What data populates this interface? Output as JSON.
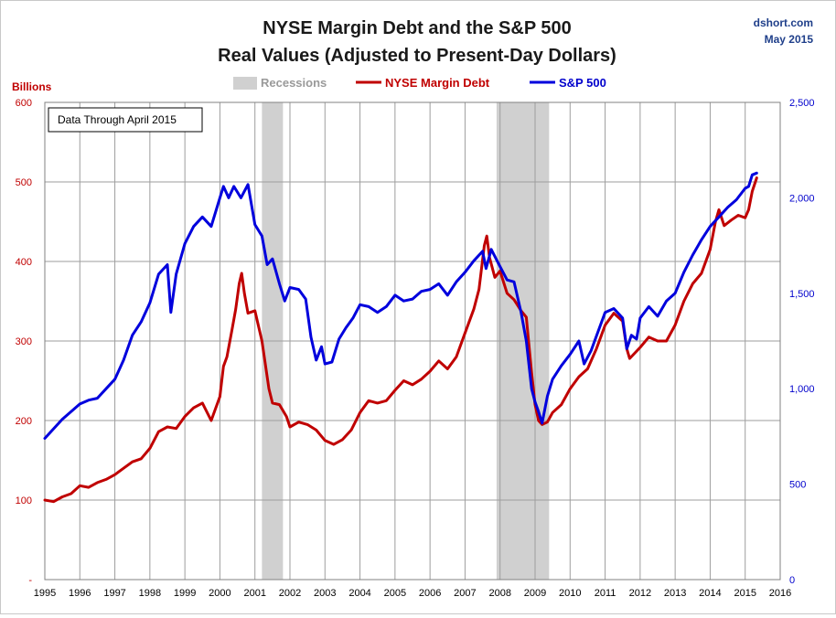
{
  "chart_data": {
    "type": "line",
    "title": "NYSE Margin Debt and the S&P 500",
    "subtitle": "Real Values (Adjusted to Present-Day Dollars)",
    "source": "dshort.com",
    "date": "May 2015",
    "annotation": "Data Through April 2015",
    "ylabel_left": "Billions",
    "x_ticks": [
      "1995",
      "1996",
      "1997",
      "1998",
      "1999",
      "2000",
      "2001",
      "2002",
      "2003",
      "2004",
      "2005",
      "2006",
      "2007",
      "2008",
      "2009",
      "2010",
      "2011",
      "2012",
      "2013",
      "2014",
      "2015",
      "2016"
    ],
    "y_left_ticks": [
      "600",
      "500",
      "400",
      "300",
      "200",
      "100",
      "-"
    ],
    "y_right_ticks": [
      "2,500",
      "2,000",
      "1,500",
      "1,000",
      "500",
      "0"
    ],
    "xlim": [
      1995,
      2016
    ],
    "ylim_left": [
      0,
      600
    ],
    "ylim_right": [
      0,
      2500
    ],
    "grid": true,
    "legend_position": "top-center",
    "recessions": [
      {
        "start": 2001.2,
        "end": 2001.8
      },
      {
        "start": 2007.9,
        "end": 2009.4
      }
    ],
    "recession_label": "Recessions",
    "recession_color": "#d0d0d0",
    "series": [
      {
        "name": "NYSE Margin Debt",
        "axis": "left",
        "color": "#c00000",
        "points": [
          [
            1995.0,
            100
          ],
          [
            1995.25,
            98
          ],
          [
            1995.5,
            104
          ],
          [
            1995.75,
            108
          ],
          [
            1996.0,
            118
          ],
          [
            1996.25,
            116
          ],
          [
            1996.5,
            122
          ],
          [
            1996.75,
            126
          ],
          [
            1997.0,
            132
          ],
          [
            1997.25,
            140
          ],
          [
            1997.5,
            148
          ],
          [
            1997.75,
            152
          ],
          [
            1998.0,
            165
          ],
          [
            1998.25,
            186
          ],
          [
            1998.5,
            192
          ],
          [
            1998.75,
            190
          ],
          [
            1999.0,
            205
          ],
          [
            1999.25,
            216
          ],
          [
            1999.5,
            222
          ],
          [
            1999.75,
            200
          ],
          [
            2000.0,
            230
          ],
          [
            2000.1,
            268
          ],
          [
            2000.2,
            280
          ],
          [
            2000.35,
            315
          ],
          [
            2000.45,
            340
          ],
          [
            2000.55,
            372
          ],
          [
            2000.62,
            385
          ],
          [
            2000.7,
            360
          ],
          [
            2000.8,
            335
          ],
          [
            2001.0,
            338
          ],
          [
            2001.2,
            300
          ],
          [
            2001.4,
            240
          ],
          [
            2001.5,
            222
          ],
          [
            2001.7,
            220
          ],
          [
            2001.9,
            205
          ],
          [
            2002.0,
            192
          ],
          [
            2002.25,
            198
          ],
          [
            2002.5,
            195
          ],
          [
            2002.75,
            188
          ],
          [
            2003.0,
            175
          ],
          [
            2003.25,
            170
          ],
          [
            2003.5,
            176
          ],
          [
            2003.75,
            188
          ],
          [
            2004.0,
            210
          ],
          [
            2004.25,
            225
          ],
          [
            2004.5,
            222
          ],
          [
            2004.75,
            225
          ],
          [
            2005.0,
            238
          ],
          [
            2005.25,
            250
          ],
          [
            2005.5,
            245
          ],
          [
            2005.75,
            252
          ],
          [
            2006.0,
            262
          ],
          [
            2006.25,
            275
          ],
          [
            2006.5,
            265
          ],
          [
            2006.75,
            280
          ],
          [
            2007.0,
            310
          ],
          [
            2007.25,
            340
          ],
          [
            2007.4,
            365
          ],
          [
            2007.55,
            420
          ],
          [
            2007.62,
            432
          ],
          [
            2007.7,
            405
          ],
          [
            2007.85,
            380
          ],
          [
            2008.0,
            388
          ],
          [
            2008.2,
            360
          ],
          [
            2008.4,
            352
          ],
          [
            2008.6,
            338
          ],
          [
            2008.75,
            330
          ],
          [
            2008.9,
            260
          ],
          [
            2009.0,
            220
          ],
          [
            2009.1,
            200
          ],
          [
            2009.2,
            195
          ],
          [
            2009.35,
            198
          ],
          [
            2009.5,
            210
          ],
          [
            2009.75,
            220
          ],
          [
            2010.0,
            240
          ],
          [
            2010.25,
            255
          ],
          [
            2010.5,
            265
          ],
          [
            2010.75,
            290
          ],
          [
            2011.0,
            320
          ],
          [
            2011.25,
            335
          ],
          [
            2011.5,
            325
          ],
          [
            2011.62,
            290
          ],
          [
            2011.7,
            278
          ],
          [
            2011.85,
            285
          ],
          [
            2012.0,
            292
          ],
          [
            2012.25,
            305
          ],
          [
            2012.5,
            300
          ],
          [
            2012.75,
            300
          ],
          [
            2013.0,
            320
          ],
          [
            2013.25,
            350
          ],
          [
            2013.5,
            372
          ],
          [
            2013.75,
            385
          ],
          [
            2014.0,
            415
          ],
          [
            2014.15,
            450
          ],
          [
            2014.25,
            465
          ],
          [
            2014.4,
            445
          ],
          [
            2014.6,
            452
          ],
          [
            2014.8,
            458
          ],
          [
            2015.0,
            455
          ],
          [
            2015.1,
            465
          ],
          [
            2015.2,
            488
          ],
          [
            2015.33,
            505
          ]
        ]
      },
      {
        "name": "S&P 500",
        "axis": "right",
        "color": "#0000dd",
        "points": [
          [
            1995.0,
            740
          ],
          [
            1995.25,
            790
          ],
          [
            1995.5,
            840
          ],
          [
            1995.75,
            880
          ],
          [
            1996.0,
            920
          ],
          [
            1996.25,
            940
          ],
          [
            1996.5,
            950
          ],
          [
            1996.75,
            1000
          ],
          [
            1997.0,
            1050
          ],
          [
            1997.25,
            1150
          ],
          [
            1997.5,
            1280
          ],
          [
            1997.75,
            1350
          ],
          [
            1998.0,
            1450
          ],
          [
            1998.25,
            1600
          ],
          [
            1998.5,
            1650
          ],
          [
            1998.6,
            1400
          ],
          [
            1998.75,
            1600
          ],
          [
            1999.0,
            1760
          ],
          [
            1999.25,
            1850
          ],
          [
            1999.5,
            1900
          ],
          [
            1999.75,
            1850
          ],
          [
            2000.0,
            2000
          ],
          [
            2000.1,
            2060
          ],
          [
            2000.25,
            2000
          ],
          [
            2000.4,
            2060
          ],
          [
            2000.6,
            2000
          ],
          [
            2000.8,
            2070
          ],
          [
            2001.0,
            1860
          ],
          [
            2001.2,
            1800
          ],
          [
            2001.35,
            1650
          ],
          [
            2001.5,
            1680
          ],
          [
            2001.7,
            1550
          ],
          [
            2001.85,
            1460
          ],
          [
            2002.0,
            1530
          ],
          [
            2002.25,
            1520
          ],
          [
            2002.45,
            1470
          ],
          [
            2002.6,
            1270
          ],
          [
            2002.75,
            1150
          ],
          [
            2002.9,
            1220
          ],
          [
            2003.0,
            1130
          ],
          [
            2003.2,
            1140
          ],
          [
            2003.4,
            1260
          ],
          [
            2003.6,
            1320
          ],
          [
            2003.8,
            1370
          ],
          [
            2004.0,
            1440
          ],
          [
            2004.25,
            1430
          ],
          [
            2004.5,
            1400
          ],
          [
            2004.75,
            1430
          ],
          [
            2005.0,
            1490
          ],
          [
            2005.25,
            1460
          ],
          [
            2005.5,
            1470
          ],
          [
            2005.75,
            1510
          ],
          [
            2006.0,
            1520
          ],
          [
            2006.25,
            1550
          ],
          [
            2006.5,
            1490
          ],
          [
            2006.75,
            1560
          ],
          [
            2007.0,
            1610
          ],
          [
            2007.25,
            1670
          ],
          [
            2007.5,
            1720
          ],
          [
            2007.6,
            1630
          ],
          [
            2007.75,
            1730
          ],
          [
            2008.0,
            1640
          ],
          [
            2008.2,
            1570
          ],
          [
            2008.4,
            1560
          ],
          [
            2008.6,
            1400
          ],
          [
            2008.75,
            1250
          ],
          [
            2008.9,
            1000
          ],
          [
            2009.0,
            930
          ],
          [
            2009.1,
            880
          ],
          [
            2009.2,
            820
          ],
          [
            2009.35,
            960
          ],
          [
            2009.5,
            1050
          ],
          [
            2009.75,
            1120
          ],
          [
            2010.0,
            1180
          ],
          [
            2010.25,
            1250
          ],
          [
            2010.4,
            1130
          ],
          [
            2010.6,
            1200
          ],
          [
            2010.8,
            1300
          ],
          [
            2011.0,
            1400
          ],
          [
            2011.25,
            1420
          ],
          [
            2011.5,
            1370
          ],
          [
            2011.62,
            1210
          ],
          [
            2011.75,
            1280
          ],
          [
            2011.9,
            1260
          ],
          [
            2012.0,
            1370
          ],
          [
            2012.25,
            1430
          ],
          [
            2012.5,
            1380
          ],
          [
            2012.75,
            1460
          ],
          [
            2013.0,
            1500
          ],
          [
            2013.25,
            1610
          ],
          [
            2013.5,
            1700
          ],
          [
            2013.75,
            1780
          ],
          [
            2014.0,
            1850
          ],
          [
            2014.25,
            1900
          ],
          [
            2014.5,
            1950
          ],
          [
            2014.75,
            1990
          ],
          [
            2015.0,
            2050
          ],
          [
            2015.1,
            2060
          ],
          [
            2015.2,
            2120
          ],
          [
            2015.33,
            2130
          ]
        ]
      }
    ]
  }
}
